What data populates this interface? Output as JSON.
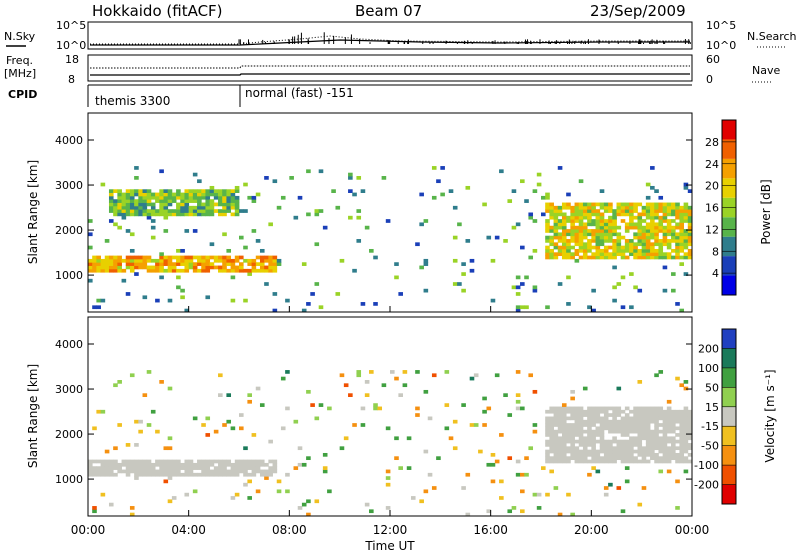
{
  "header": {
    "title_left": "Hokkaido (fitACF)",
    "title_center": "Beam 07",
    "title_right": "23/Sep/2009"
  },
  "summary_panels": {
    "noise_left_label": "N.Sky",
    "noise_right_label": "N.Search",
    "noise_left_ticks": [
      "10^5",
      "10^0"
    ],
    "noise_right_ticks": [
      "10^5",
      "10^0"
    ],
    "freq_label_line1": "Freq.",
    "freq_label_line2": "[MHz]",
    "freq_ticks": [
      "18",
      "8"
    ],
    "nave_label": "Nave",
    "nave_ticks": [
      "60",
      "0"
    ],
    "cpid_label": "CPID",
    "cpid_modes": [
      {
        "label": "themis 3300",
        "start_hour": 0,
        "end_hour": 6
      },
      {
        "label": "normal (fast) -151",
        "start_hour": 6,
        "end_hour": 24
      }
    ]
  },
  "chart_data": [
    {
      "type": "heatmap",
      "parameter": "power",
      "ylabel": "Slant Range [km]",
      "xlabel": "",
      "x_range_hours": [
        0,
        24
      ],
      "ylim": [
        180,
        4600
      ],
      "y_ticks": [
        "1000",
        "2000",
        "3000",
        "4000"
      ],
      "colorbar": {
        "label": "Power [dB]",
        "ticks": [
          "4",
          "8",
          "12",
          "16",
          "20",
          "24",
          "28"
        ],
        "range": [
          0,
          30
        ],
        "colors": [
          "#0000e6",
          "#1a3fb8",
          "#2f7d8c",
          "#58b44a",
          "#9ad326",
          "#e8d000",
          "#f5a000",
          "#f06000",
          "#e00000"
        ]
      },
      "features": [
        {
          "name": "E-region echo band",
          "start_hour": 0.0,
          "end_hour": 7.5,
          "range_km": [
            1050,
            1450
          ],
          "level": 26
        },
        {
          "name": "upper echo band",
          "start_hour": 0.8,
          "end_hour": 6.0,
          "range_km": [
            2300,
            2900
          ],
          "level": 18
        },
        {
          "name": "evening echoes",
          "start_hour": 18.2,
          "end_hour": 24.0,
          "range_km": [
            1350,
            2600
          ],
          "level": 22
        }
      ]
    },
    {
      "type": "heatmap",
      "parameter": "velocity",
      "ylabel": "Slant Range [km]",
      "xlabel": "Time UT",
      "x_range_hours": [
        0,
        24
      ],
      "ylim": [
        180,
        4600
      ],
      "y_ticks": [
        "1000",
        "2000",
        "3000",
        "4000"
      ],
      "x_ticks": [
        "00:00",
        "04:00",
        "08:00",
        "12:00",
        "16:00",
        "20:00",
        "00:00"
      ],
      "colorbar": {
        "label": "Velocity [m s⁻¹]",
        "ticks": [
          "200",
          "100",
          "50",
          "15",
          "-15",
          "-50",
          "-100",
          "-200"
        ],
        "range": [
          -250,
          250
        ],
        "colors": [
          "#2040c0",
          "#1a7a5a",
          "#40a040",
          "#90d050",
          "#c8c8c0",
          "#f0c020",
          "#f59010",
          "#f05000",
          "#e00000"
        ]
      },
      "features": [
        {
          "name": "ground scatter band",
          "start_hour": 0.0,
          "end_hour": 7.5,
          "range_km": [
            1050,
            1450
          ],
          "velocity": 0
        },
        {
          "name": "evening ground scatter",
          "start_hour": 18.2,
          "end_hour": 24.0,
          "range_km": [
            1350,
            2600
          ],
          "velocity": 0
        }
      ]
    }
  ]
}
